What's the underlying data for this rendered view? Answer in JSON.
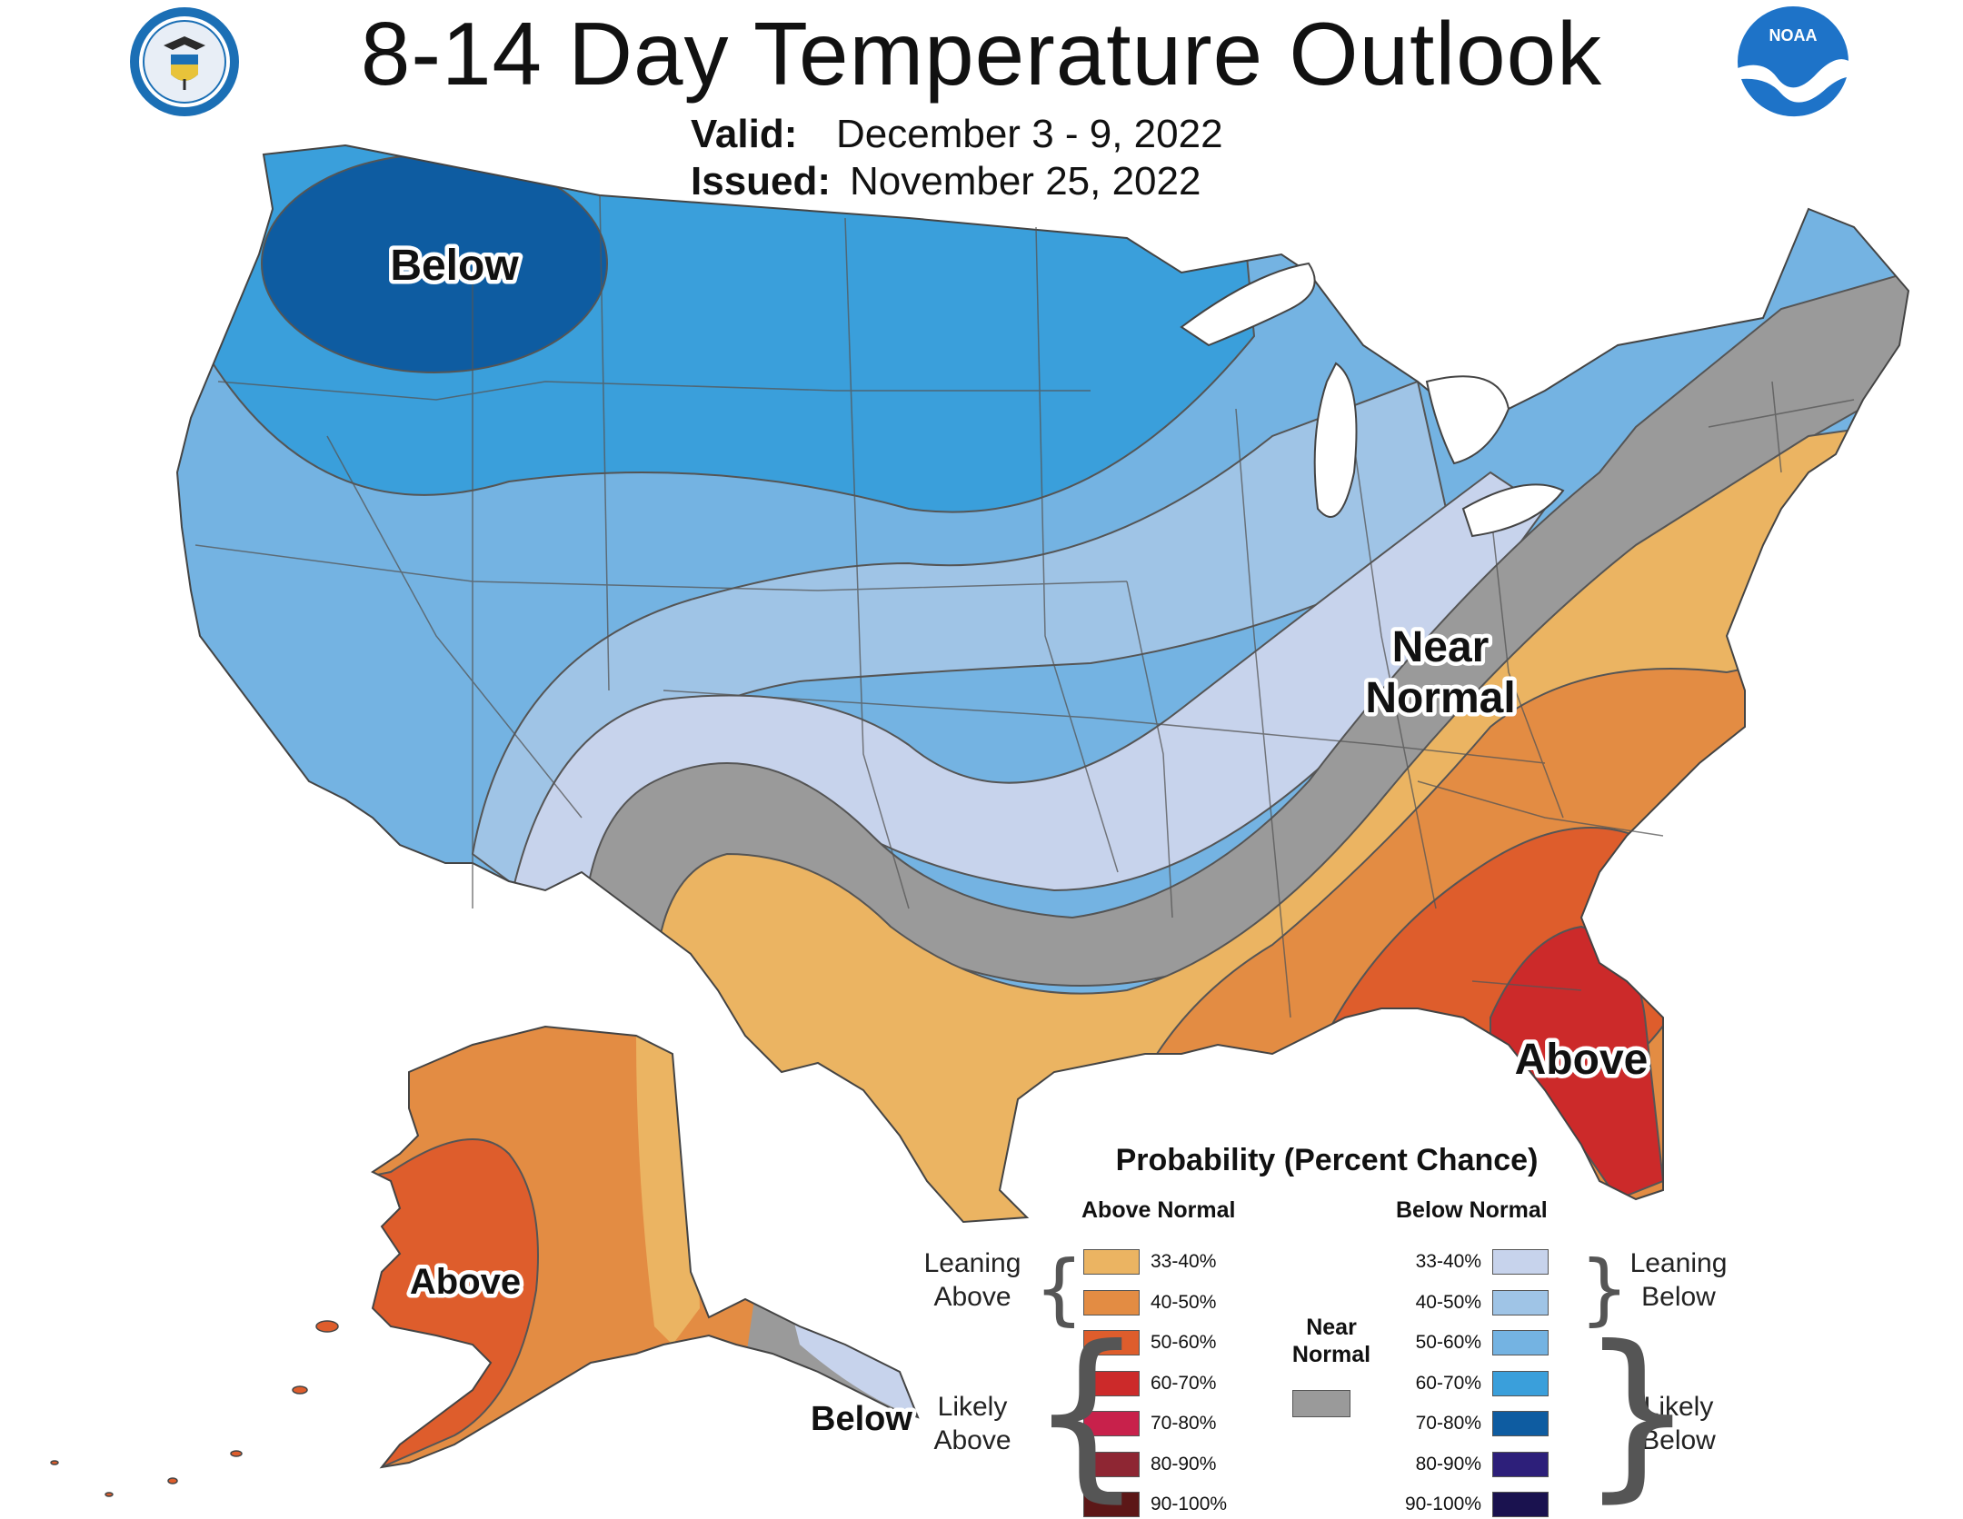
{
  "title": "8-14 Day Temperature Outlook",
  "valid_label": "Valid:",
  "valid_dates": "December 3 - 9, 2022",
  "issued_label": "Issued:",
  "issued_date": "November 25, 2022",
  "logos": {
    "left": "Department of Commerce seal",
    "right": "NOAA",
    "noaa_text": "NOAA"
  },
  "map_labels": {
    "below_nw": "Below",
    "near_normal_1": "Near",
    "near_normal_2": "Normal",
    "above_se": "Above",
    "above_ak": "Above",
    "below_ak": "Below"
  },
  "legend": {
    "title": "Probability (Percent Chance)",
    "above_header": "Above Normal",
    "below_header": "Below Normal",
    "leaning_above": [
      "Leaning",
      "Above"
    ],
    "likely_above": [
      "Likely",
      "Above"
    ],
    "leaning_below": [
      "Leaning",
      "Below"
    ],
    "likely_below": [
      "Likely",
      "Below"
    ],
    "near_normal": [
      "Near",
      "Normal"
    ],
    "above_items": [
      {
        "label": "33-40%",
        "color": "#ebb462"
      },
      {
        "label": "40-50%",
        "color": "#e38c43"
      },
      {
        "label": "50-60%",
        "color": "#de5d2c"
      },
      {
        "label": "60-70%",
        "color": "#cc2a2a"
      },
      {
        "label": "70-80%",
        "color": "#c8214b"
      },
      {
        "label": "80-90%",
        "color": "#8e2633"
      },
      {
        "label": "90-100%",
        "color": "#5c1717"
      }
    ],
    "below_items": [
      {
        "label": "33-40%",
        "color": "#c7d3ec"
      },
      {
        "label": "40-50%",
        "color": "#9fc4e6"
      },
      {
        "label": "50-60%",
        "color": "#74b3e2"
      },
      {
        "label": "60-70%",
        "color": "#3a9fdb"
      },
      {
        "label": "70-80%",
        "color": "#0e5ca1"
      },
      {
        "label": "80-90%",
        "color": "#2d1f7a"
      },
      {
        "label": "90-100%",
        "color": "#1a124f"
      }
    ],
    "near_normal_color": "#9a9a9a"
  }
}
